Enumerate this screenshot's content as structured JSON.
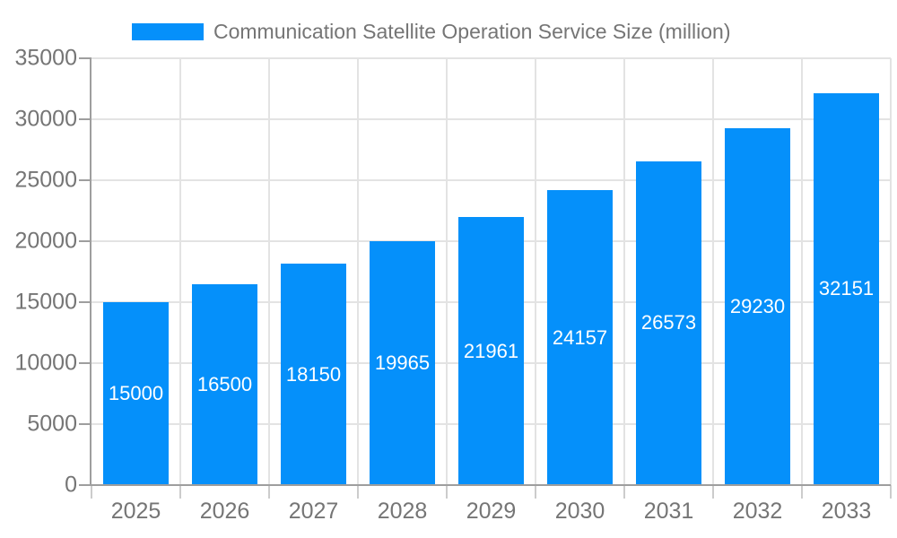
{
  "chart_data": {
    "type": "bar",
    "title": "Communication Satellite Operation Service Size (million)",
    "categories": [
      "2025",
      "2026",
      "2027",
      "2028",
      "2029",
      "2030",
      "2031",
      "2032",
      "2033"
    ],
    "values": [
      15000,
      16500,
      18150,
      19965,
      21961,
      24157,
      26573,
      29230,
      32151
    ],
    "data_labels": [
      "15000",
      "16500",
      "18150",
      "19965",
      "21961",
      "24157",
      "26573",
      "29230",
      "32151"
    ],
    "xlabel": "",
    "ylabel": "",
    "ylim": [
      0,
      35000
    ],
    "yticks": [
      0,
      5000,
      10000,
      15000,
      20000,
      25000,
      30000,
      35000
    ],
    "ytick_labels": [
      "0",
      "5000",
      "10000",
      "15000",
      "20000",
      "25000",
      "30000",
      "35000"
    ],
    "grid": "on",
    "legend_position": "top",
    "bar_color": "#0590fa",
    "label_color": "#ffffff",
    "axis_text_color": "#757575"
  }
}
